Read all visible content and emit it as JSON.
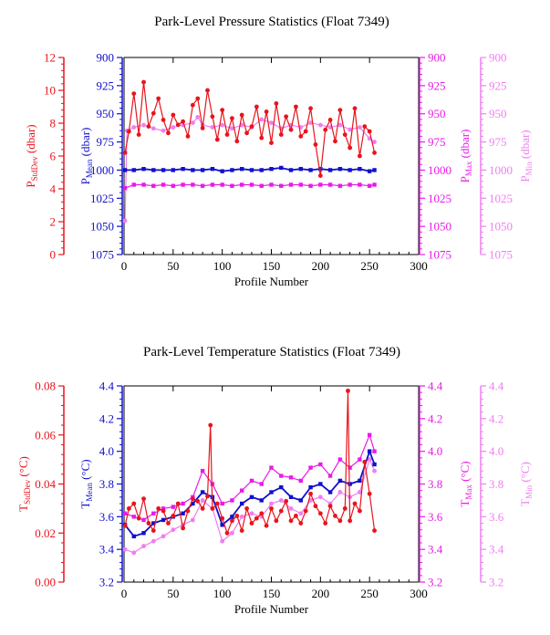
{
  "colors": {
    "stddev": "#e8141c",
    "mean": "#1010cc",
    "max": "#e81ae8",
    "min": "#f07ef0",
    "axis": "#000000"
  },
  "chart_data": [
    {
      "type": "line",
      "title": "Park-Level Pressure Statistics (Float 7349)",
      "xlabel": "Profile Number",
      "xlim": [
        0,
        300
      ],
      "xticks": [
        "0",
        "50",
        "100",
        "150",
        "200",
        "250",
        "300"
      ],
      "axes": [
        {
          "key": "stddev",
          "label": "P",
          "sub": "StdDev",
          "unit": " (dbar)",
          "lim": [
            0,
            12
          ],
          "inverted": false,
          "ticks": [
            "0",
            "2",
            "4",
            "6",
            "8",
            "10",
            "12"
          ]
        },
        {
          "key": "mean",
          "label": "P",
          "sub": "Mean",
          "unit": " (dbar)",
          "lim": [
            1075,
            900
          ],
          "inverted": true,
          "ticks": [
            "1075",
            "1050",
            "1025",
            "1000",
            "975",
            "950",
            "925",
            "900"
          ]
        },
        {
          "key": "max",
          "label": "P",
          "sub": "Max",
          "unit": " (dbar)",
          "lim": [
            1075,
            900
          ],
          "inverted": true,
          "ticks": [
            "1075",
            "1050",
            "1025",
            "1000",
            "975",
            "950",
            "925",
            "900"
          ]
        },
        {
          "key": "min",
          "label": "P",
          "sub": "Min",
          "unit": " (dbar)",
          "lim": [
            1075,
            900
          ],
          "inverted": true,
          "ticks": [
            "1075",
            "1050",
            "1025",
            "1000",
            "975",
            "950",
            "925",
            "900"
          ]
        }
      ],
      "series": [
        {
          "key": "stddev",
          "x": [
            1,
            5,
            10,
            15,
            20,
            25,
            30,
            35,
            40,
            45,
            50,
            55,
            60,
            65,
            70,
            75,
            80,
            85,
            90,
            95,
            100,
            105,
            110,
            115,
            120,
            125,
            130,
            135,
            140,
            145,
            150,
            155,
            160,
            165,
            170,
            175,
            180,
            185,
            190,
            195,
            200,
            205,
            210,
            215,
            220,
            225,
            230,
            235,
            240,
            245,
            250,
            255
          ],
          "y": [
            6.2,
            7.5,
            9.8,
            7.3,
            10.5,
            7.8,
            8.6,
            9.5,
            8.2,
            7.4,
            8.5,
            7.9,
            8.1,
            7.2,
            9.1,
            9.5,
            7.7,
            10.0,
            8.4,
            7.0,
            8.8,
            7.3,
            8.3,
            6.9,
            8.5,
            7.4,
            7.8,
            9.0,
            7.1,
            8.7,
            6.8,
            9.2,
            7.3,
            8.4,
            7.6,
            9.0,
            7.2,
            7.5,
            8.9,
            6.7,
            4.8,
            7.6,
            8.2,
            6.9,
            8.8,
            7.3,
            6.5,
            8.9,
            6.0,
            7.8,
            7.5,
            6.2
          ]
        },
        {
          "key": "mean",
          "x": [
            1,
            10,
            20,
            30,
            40,
            50,
            60,
            70,
            80,
            90,
            100,
            110,
            120,
            130,
            140,
            150,
            160,
            170,
            180,
            190,
            200,
            210,
            220,
            230,
            240,
            250,
            255
          ],
          "y": [
            1000,
            1000,
            999,
            1000,
            1000,
            1000,
            999,
            1000,
            1000,
            999,
            1001,
            1000,
            999,
            1000,
            1000,
            999,
            998,
            1000,
            999,
            1000,
            999,
            1000,
            999,
            1000,
            999,
            1001,
            1000
          ]
        },
        {
          "key": "max",
          "x": [
            1,
            10,
            20,
            30,
            40,
            50,
            60,
            70,
            80,
            90,
            100,
            110,
            120,
            130,
            140,
            150,
            160,
            170,
            180,
            190,
            200,
            210,
            220,
            230,
            240,
            250,
            255
          ],
          "y": [
            1016,
            1013,
            1013,
            1014,
            1013,
            1014,
            1013,
            1013,
            1014,
            1013,
            1013,
            1014,
            1013,
            1013,
            1014,
            1013,
            1014,
            1013,
            1013,
            1014,
            1013,
            1013,
            1014,
            1013,
            1013,
            1014,
            1013
          ]
        },
        {
          "key": "min",
          "x": [
            1,
            3,
            10,
            20,
            30,
            40,
            50,
            60,
            70,
            75,
            80,
            90,
            100,
            110,
            120,
            130,
            140,
            150,
            160,
            170,
            180,
            190,
            200,
            210,
            220,
            230,
            240,
            250,
            255
          ],
          "y": [
            1045,
            965,
            962,
            960,
            963,
            965,
            962,
            960,
            958,
            953,
            960,
            962,
            960,
            963,
            960,
            962,
            955,
            958,
            963,
            960,
            962,
            958,
            960,
            962,
            960,
            964,
            962,
            972,
            975
          ]
        }
      ]
    },
    {
      "type": "line",
      "title": "Park-Level Temperature Statistics (Float 7349)",
      "xlabel": "Profile Number",
      "xlim": [
        0,
        300
      ],
      "xticks": [
        "0",
        "50",
        "100",
        "150",
        "200",
        "250",
        "300"
      ],
      "axes": [
        {
          "key": "stddev",
          "label": "T",
          "sub": "StdDev",
          "unit": " (°C)",
          "lim": [
            0,
            0.08
          ],
          "inverted": false,
          "ticks": [
            "0.00",
            "0.02",
            "0.04",
            "0.06",
            "0.08"
          ]
        },
        {
          "key": "mean",
          "label": "T",
          "sub": "Mean",
          "unit": " (°C)",
          "lim": [
            3.2,
            4.4
          ],
          "inverted": false,
          "ticks": [
            "3.2",
            "3.4",
            "3.6",
            "3.8",
            "4.0",
            "4.2",
            "4.4"
          ]
        },
        {
          "key": "max",
          "label": "T",
          "sub": "Max",
          "unit": " (°C)",
          "lim": [
            3.2,
            4.4
          ],
          "inverted": false,
          "ticks": [
            "3.2",
            "3.4",
            "3.6",
            "3.8",
            "4.0",
            "4.2",
            "4.4"
          ]
        },
        {
          "key": "min",
          "label": "T",
          "sub": "Min",
          "unit": " (°C)",
          "lim": [
            3.2,
            4.4
          ],
          "inverted": false,
          "ticks": [
            "3.2",
            "3.4",
            "3.6",
            "3.8",
            "4.0",
            "4.2",
            "4.4"
          ]
        }
      ],
      "series": [
        {
          "key": "stddev",
          "x": [
            1,
            5,
            10,
            15,
            20,
            25,
            30,
            35,
            40,
            45,
            50,
            55,
            60,
            65,
            70,
            75,
            80,
            85,
            88,
            90,
            95,
            100,
            105,
            110,
            115,
            120,
            125,
            130,
            135,
            140,
            145,
            150,
            155,
            160,
            165,
            170,
            175,
            180,
            185,
            190,
            195,
            200,
            205,
            210,
            215,
            220,
            225,
            228,
            230,
            235,
            240,
            245,
            250,
            255
          ],
          "y": [
            0.023,
            0.03,
            0.032,
            0.026,
            0.034,
            0.024,
            0.021,
            0.03,
            0.029,
            0.024,
            0.027,
            0.032,
            0.022,
            0.029,
            0.034,
            0.033,
            0.03,
            0.035,
            0.064,
            0.03,
            0.032,
            0.026,
            0.02,
            0.025,
            0.027,
            0.021,
            0.03,
            0.024,
            0.026,
            0.028,
            0.023,
            0.03,
            0.025,
            0.029,
            0.033,
            0.025,
            0.027,
            0.024,
            0.029,
            0.036,
            0.031,
            0.028,
            0.024,
            0.031,
            0.027,
            0.025,
            0.03,
            0.078,
            0.025,
            0.032,
            0.029,
            0.049,
            0.036,
            0.021
          ]
        },
        {
          "key": "mean",
          "x": [
            1,
            10,
            20,
            30,
            40,
            50,
            60,
            70,
            80,
            90,
            100,
            110,
            120,
            130,
            140,
            150,
            160,
            170,
            180,
            190,
            200,
            210,
            220,
            230,
            240,
            250,
            255
          ],
          "y": [
            3.55,
            3.48,
            3.5,
            3.56,
            3.58,
            3.6,
            3.62,
            3.68,
            3.75,
            3.72,
            3.55,
            3.6,
            3.68,
            3.72,
            3.7,
            3.75,
            3.78,
            3.72,
            3.7,
            3.78,
            3.8,
            3.75,
            3.82,
            3.8,
            3.82,
            4.0,
            3.92
          ]
        },
        {
          "key": "max",
          "x": [
            1,
            10,
            20,
            30,
            40,
            50,
            60,
            70,
            80,
            90,
            100,
            110,
            120,
            130,
            140,
            150,
            160,
            170,
            180,
            190,
            200,
            210,
            220,
            230,
            240,
            250,
            255
          ],
          "y": [
            3.62,
            3.6,
            3.58,
            3.62,
            3.65,
            3.66,
            3.68,
            3.72,
            3.88,
            3.8,
            3.68,
            3.7,
            3.76,
            3.82,
            3.8,
            3.9,
            3.85,
            3.84,
            3.82,
            3.9,
            3.92,
            3.85,
            3.95,
            3.9,
            3.95,
            4.1,
            4.0
          ]
        },
        {
          "key": "min",
          "x": [
            1,
            10,
            20,
            30,
            40,
            50,
            60,
            70,
            80,
            90,
            100,
            110,
            120,
            130,
            140,
            150,
            160,
            170,
            180,
            190,
            200,
            210,
            220,
            230,
            240,
            250,
            255
          ],
          "y": [
            3.4,
            3.38,
            3.42,
            3.45,
            3.48,
            3.52,
            3.55,
            3.58,
            3.7,
            3.65,
            3.45,
            3.5,
            3.6,
            3.62,
            3.6,
            3.68,
            3.7,
            3.65,
            3.62,
            3.7,
            3.72,
            3.68,
            3.75,
            3.72,
            3.75,
            3.95,
            3.88
          ]
        }
      ]
    }
  ]
}
